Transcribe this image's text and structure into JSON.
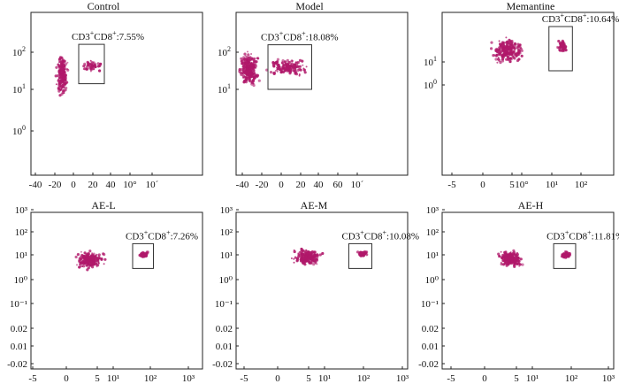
{
  "figure": {
    "caption": ""
  },
  "chart_data": [
    {
      "type": "scatter",
      "title": "Control",
      "xlabel": "",
      "ylabel": "",
      "x_ticks": [
        "-40",
        "-20",
        "0",
        "20",
        "40",
        "10°",
        "10´"
      ],
      "y_ticks": [
        "10²",
        "10¹",
        "10⁰"
      ],
      "y_exponent_ticks": [
        {
          "base": "10",
          "exp": "2"
        },
        {
          "base": "10",
          "exp": "1"
        },
        {
          "base": "10",
          "exp": "0"
        }
      ],
      "gate": {
        "label_parts": {
          "cd3": "CD3",
          "cd8": "CD8",
          "plus": "+",
          "value": ":7.55%"
        },
        "percent": 7.55,
        "x_range": [
          4,
          33
        ],
        "y_level_range": [
          11.2,
          12.2
        ]
      },
      "clusters": [
        {
          "center_x": -14.5,
          "center_y_level": 11.4,
          "spread_x": 5,
          "spread_y": 0.45,
          "count": 190
        },
        {
          "center_x": 18,
          "center_y_level": 11.65,
          "spread_x": 9,
          "spread_y": 0.12,
          "count": 45
        }
      ]
    },
    {
      "type": "scatter",
      "title": "Model",
      "xlabel": "",
      "ylabel": "",
      "x_ticks": [
        "-40",
        "-20",
        "0",
        "20",
        "40",
        "60",
        "10´"
      ],
      "y_ticks": [
        "10²",
        "10¹"
      ],
      "y_exponent_ticks": [
        {
          "base": "10",
          "exp": "2"
        },
        {
          "base": "10",
          "exp": "1"
        }
      ],
      "gate": {
        "label_parts": {
          "cd3": "CD3",
          "cd8": "CD8",
          "plus": "+",
          "value": ":18.08%"
        },
        "percent": 18.08,
        "x_range": [
          -13,
          33
        ],
        "y_level_range": [
          11.0,
          12.2
        ]
      },
      "clusters": [
        {
          "center_x": -33,
          "center_y_level": 11.55,
          "spread_x": 8,
          "spread_y": 0.35,
          "count": 260
        },
        {
          "center_x": 8,
          "center_y_level": 11.6,
          "spread_x": 16,
          "spread_y": 0.18,
          "count": 150
        }
      ]
    },
    {
      "type": "scatter",
      "title": "Memantine",
      "xlabel": "",
      "ylabel": "",
      "x_ticks": [
        "-5",
        "0",
        "5",
        "10°",
        "10¹",
        "10²"
      ],
      "y_ticks": [
        "10¹",
        "10⁰"
      ],
      "y_exponent_ticks": [
        {
          "base": "10",
          "exp": "1"
        },
        {
          "base": "10",
          "exp": "0"
        }
      ],
      "gate": {
        "label_parts": {
          "cd3": "CD3",
          "cd8": "CD8",
          "plus": "+",
          "value": ":10.64%"
        },
        "percent": 10.64,
        "x_range": [
          4.6,
          6.9
        ],
        "y_level_range": [
          0.8,
          1.8
        ]
      },
      "clusters": [
        {
          "center_x": 0.6,
          "center_y_level": 1.25,
          "spread_x": 1.3,
          "spread_y": 0.22,
          "count": 230
        },
        {
          "center_x": 5.9,
          "center_y_level": 1.35,
          "spread_x": 0.35,
          "spread_y": 0.12,
          "count": 70
        }
      ]
    },
    {
      "type": "scatter",
      "title": "AE-L",
      "xlabel": "",
      "ylabel": "",
      "x_ticks": [
        "-5",
        "0",
        "5",
        "10¹",
        "10²",
        "10³"
      ],
      "y_ticks": [
        "10³",
        "10²",
        "10¹",
        "10⁰",
        "10⁻¹",
        "0.02",
        "0.01",
        "-0.02"
      ],
      "gate": {
        "label_parts": {
          "cd3": "CD3",
          "cd8": "CD8",
          "plus": "+",
          "value": ":7.26%"
        },
        "percent": 7.26,
        "x_range": [
          4.6,
          6.6
        ],
        "y_level_range": [
          3.45,
          4.45
        ]
      },
      "clusters": [
        {
          "center_x": 0.5,
          "center_y_level": 3.8,
          "spread_x": 1.1,
          "spread_y": 0.3,
          "count": 210
        },
        {
          "center_x": 5.7,
          "center_y_level": 4.0,
          "spread_x": 0.35,
          "spread_y": 0.1,
          "count": 65
        }
      ]
    },
    {
      "type": "scatter",
      "title": "AE-M",
      "xlabel": "",
      "ylabel": "",
      "x_ticks": [
        "-5",
        "0",
        "5",
        "10¹",
        "10²",
        "10³"
      ],
      "y_ticks": [
        "10³",
        "10²",
        "10¹",
        "10⁰",
        "10⁻¹",
        "0.02",
        "0.01",
        "-0.02"
      ],
      "gate": {
        "label_parts": {
          "cd3": "CD3",
          "cd8": "CD8",
          "plus": "+",
          "value": ":10.08%"
        },
        "percent": 10.08,
        "x_range": [
          5.0,
          7.2
        ],
        "y_level_range": [
          3.45,
          4.45
        ]
      },
      "clusters": [
        {
          "center_x": 1.0,
          "center_y_level": 3.9,
          "spread_x": 1.1,
          "spread_y": 0.25,
          "count": 200
        },
        {
          "center_x": 6.3,
          "center_y_level": 4.05,
          "spread_x": 0.35,
          "spread_y": 0.1,
          "count": 70
        }
      ]
    },
    {
      "type": "scatter",
      "title": "AE-H",
      "xlabel": "",
      "ylabel": "",
      "x_ticks": [
        "-5",
        "0",
        "5",
        "10¹",
        "10²",
        "10³"
      ],
      "y_ticks": [
        "10³",
        "10²",
        "10¹",
        "10⁰",
        "10⁻¹",
        "0.02",
        "0.01",
        "-0.02"
      ],
      "gate": {
        "label_parts": {
          "cd3": "CD3",
          "cd8": "CD8",
          "plus": "+",
          "value": ":11.81%"
        },
        "percent": 11.81,
        "x_range": [
          4.8,
          6.9
        ],
        "y_level_range": [
          3.45,
          4.45
        ]
      },
      "clusters": [
        {
          "center_x": 0.7,
          "center_y_level": 3.85,
          "spread_x": 1.0,
          "spread_y": 0.28,
          "count": 210
        },
        {
          "center_x": 6.0,
          "center_y_level": 4.0,
          "spread_x": 0.35,
          "spread_y": 0.1,
          "count": 70
        }
      ]
    }
  ],
  "style": {
    "dot_color": "#b0186a",
    "frame_color": "#222222",
    "gate_color": "#333333"
  }
}
